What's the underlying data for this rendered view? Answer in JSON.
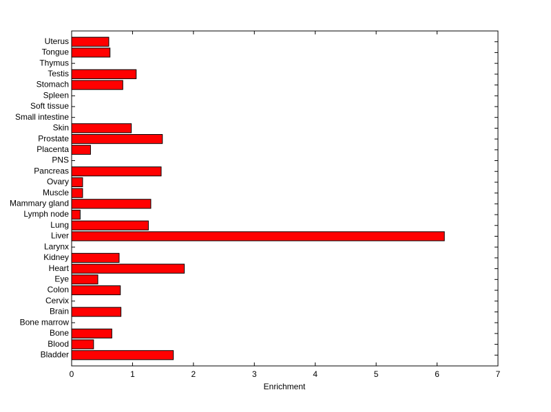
{
  "chart_data": {
    "type": "barh",
    "xlabel": "Enrichment",
    "categories": [
      "Bladder",
      "Blood",
      "Bone",
      "Bone marrow",
      "Brain",
      "Cervix",
      "Colon",
      "Eye",
      "Heart",
      "Kidney",
      "Larynx",
      "Liver",
      "Lung",
      "Lymph node",
      "Mammary gland",
      "Muscle",
      "Ovary",
      "Pancreas",
      "PNS",
      "Placenta",
      "Prostate",
      "Skin",
      "Small intestine",
      "Soft tissue",
      "Spleen",
      "Stomach",
      "Testis",
      "Thymus",
      "Tongue",
      "Uterus"
    ],
    "values": [
      1.67,
      0.36,
      0.66,
      0,
      0.81,
      0,
      0.8,
      0.43,
      1.85,
      0.78,
      0,
      6.12,
      1.26,
      0.14,
      1.3,
      0.18,
      0.18,
      1.47,
      0,
      0.31,
      1.49,
      0.98,
      0,
      0,
      0,
      0.84,
      1.06,
      0,
      0.63,
      0.61
    ],
    "color": "#ff0000",
    "xlim": [
      0,
      7
    ],
    "xticks": [
      0,
      1,
      2,
      3,
      4,
      5,
      6,
      7
    ]
  }
}
